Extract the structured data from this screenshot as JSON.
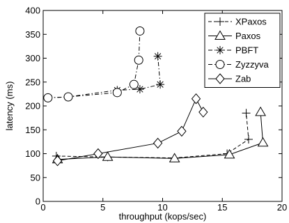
{
  "chart_data": {
    "type": "line",
    "title": "",
    "xlabel": "throughput (kops/sec)",
    "ylabel": "latency (ms)",
    "xlim": [
      0,
      20
    ],
    "ylim": [
      0,
      400
    ],
    "xticks": [
      0,
      5,
      10,
      15,
      20
    ],
    "yticks": [
      0,
      50,
      100,
      150,
      200,
      250,
      300,
      350,
      400
    ],
    "grid": false,
    "legend_position": "top-right",
    "series": [
      {
        "name": "XPaxos",
        "marker": "plus",
        "line_style": "dashed",
        "x": [
          1.1,
          5.4,
          11.0,
          15.4,
          17.2,
          17.0
        ],
        "y": [
          95,
          93,
          91,
          100,
          130,
          185
        ]
      },
      {
        "name": "Paxos",
        "marker": "triangle",
        "line_style": "solid",
        "x": [
          1.2,
          5.4,
          11.0,
          15.6,
          18.4,
          18.2
        ],
        "y": [
          88,
          93,
          90,
          98,
          123,
          187
        ]
      },
      {
        "name": "PBFT",
        "marker": "star",
        "line_style": "dashdot",
        "x": [
          0.4,
          2.1,
          6.2,
          8.1,
          9.8,
          9.6
        ],
        "y": [
          217,
          219,
          233,
          235,
          245,
          304
        ]
      },
      {
        "name": "Zyzzyva",
        "marker": "circle",
        "line_style": "dashdot",
        "x": [
          0.4,
          2.1,
          6.2,
          7.6,
          8.0,
          8.1
        ],
        "y": [
          217,
          219,
          228,
          245,
          296,
          357
        ]
      },
      {
        "name": "Zab",
        "marker": "diamond",
        "line_style": "solid",
        "x": [
          1.2,
          4.6,
          9.6,
          11.6,
          12.8,
          13.4
        ],
        "y": [
          85,
          100,
          122,
          147,
          215,
          187
        ]
      }
    ]
  }
}
